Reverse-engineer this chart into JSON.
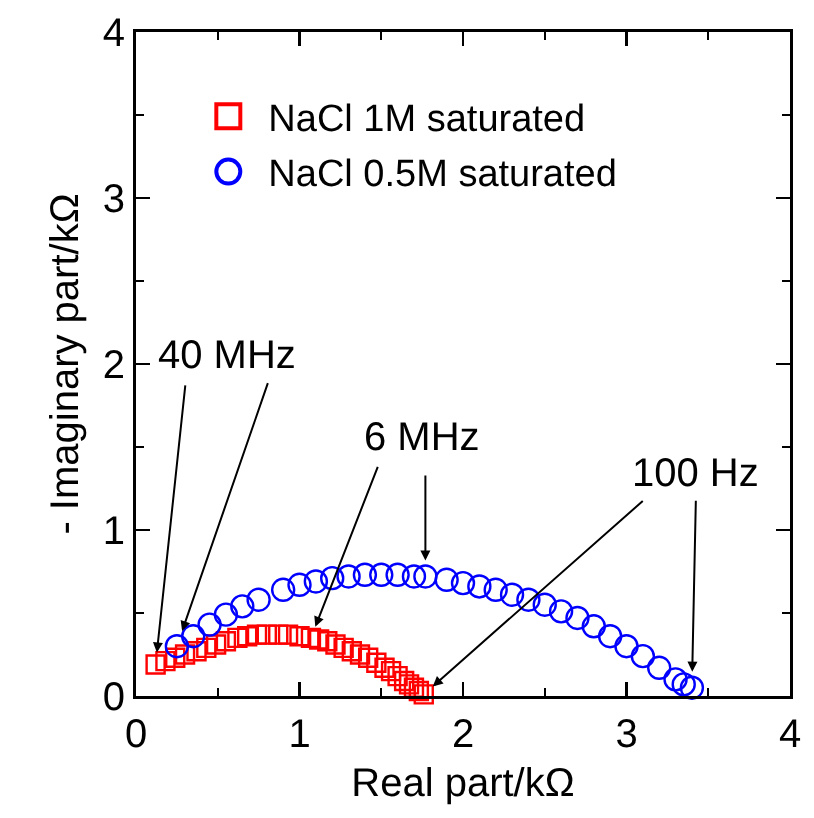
{
  "chart_data": {
    "type": "scatter",
    "xlabel": "Real part/kΩ",
    "ylabel": "- Imaginary part/kΩ",
    "xlim": [
      0,
      4
    ],
    "ylim": [
      0,
      4
    ],
    "xticks": [
      0,
      1,
      2,
      3,
      4
    ],
    "yticks": [
      0,
      1,
      2,
      3,
      4
    ],
    "grid": false,
    "legend": "top left",
    "series": [
      {
        "name": "NaCl 1M saturated",
        "color": "#ff0000",
        "marker": "square",
        "x": [
          0.12,
          0.18,
          0.24,
          0.3,
          0.37,
          0.43,
          0.49,
          0.55,
          0.62,
          0.68,
          0.74,
          0.8,
          0.87,
          0.93,
          1.0,
          1.07,
          1.12,
          1.17,
          1.22,
          1.27,
          1.32,
          1.37,
          1.42,
          1.47,
          1.52,
          1.56,
          1.6,
          1.64,
          1.67,
          1.7,
          1.73,
          1.76
        ],
        "values": [
          0.19,
          0.21,
          0.23,
          0.25,
          0.27,
          0.29,
          0.31,
          0.33,
          0.35,
          0.36,
          0.37,
          0.37,
          0.37,
          0.37,
          0.36,
          0.35,
          0.34,
          0.33,
          0.31,
          0.29,
          0.27,
          0.25,
          0.23,
          0.2,
          0.17,
          0.15,
          0.12,
          0.09,
          0.07,
          0.05,
          0.03,
          0.01
        ]
      },
      {
        "name": "NaCl 0.5M saturated",
        "color": "#0000ff",
        "marker": "circle",
        "x": [
          0.25,
          0.35,
          0.45,
          0.55,
          0.65,
          0.75,
          0.9,
          1.0,
          1.1,
          1.2,
          1.3,
          1.4,
          1.5,
          1.6,
          1.7,
          1.77,
          1.9,
          2.0,
          2.1,
          2.2,
          2.3,
          2.4,
          2.5,
          2.6,
          2.7,
          2.8,
          2.9,
          3.0,
          3.1,
          3.2,
          3.3,
          3.35,
          3.4
        ],
        "values": [
          0.3,
          0.36,
          0.43,
          0.49,
          0.54,
          0.58,
          0.64,
          0.67,
          0.69,
          0.71,
          0.72,
          0.73,
          0.73,
          0.73,
          0.72,
          0.72,
          0.7,
          0.68,
          0.66,
          0.64,
          0.61,
          0.58,
          0.55,
          0.51,
          0.47,
          0.42,
          0.36,
          0.3,
          0.24,
          0.17,
          0.1,
          0.07,
          0.05
        ]
      }
    ],
    "annotations": [
      {
        "text": "40 MHz",
        "x": 0.12,
        "y": 0.19
      },
      {
        "text": "6 MHz",
        "x": 1.07,
        "y": 0.35
      },
      {
        "text": "100 Hz",
        "x": 1.76,
        "y": 0.01
      }
    ]
  }
}
